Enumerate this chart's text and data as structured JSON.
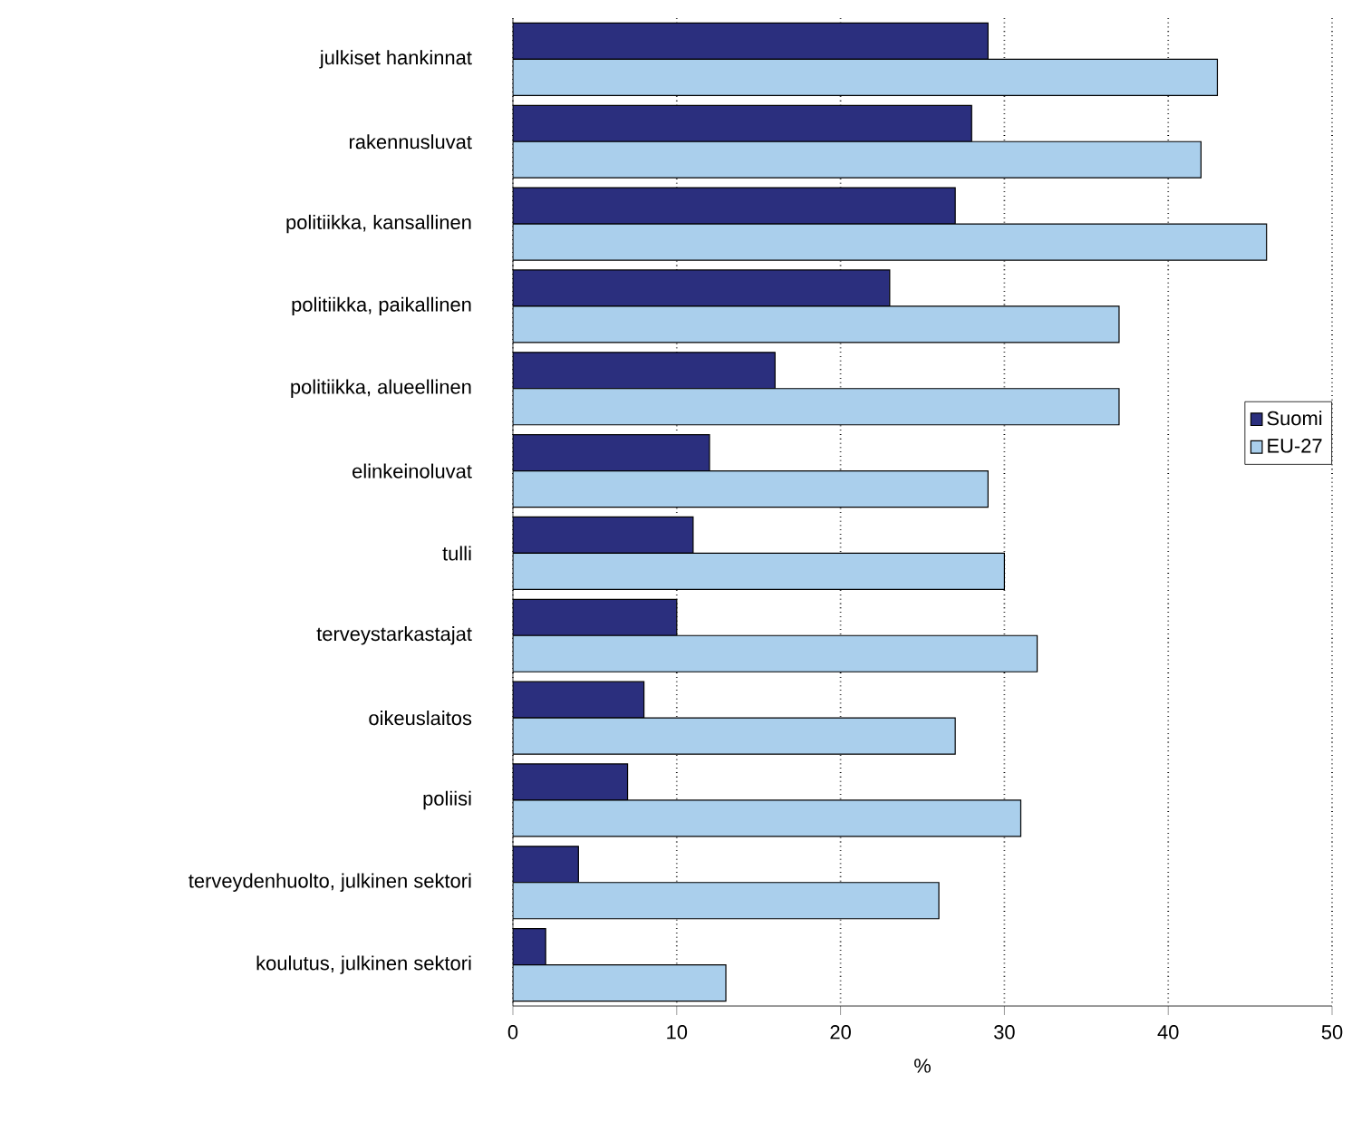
{
  "chart_data": {
    "type": "bar",
    "orientation": "horizontal",
    "xlabel": "%",
    "categories": [
      "julkiset hankinnat",
      "rakennusluvat",
      "politiikka, kansallinen",
      "politiikka, paikallinen",
      "politiikka, alueellinen",
      "elinkeinoluvat",
      "tulli",
      "terveystarkastajat",
      "oikeuslaitos",
      "poliisi",
      "terveydenhuolto, julkinen sektori",
      "koulutus, julkinen sektori"
    ],
    "series": [
      {
        "name": "Suomi",
        "color": "#2b2f7e",
        "values": [
          29,
          28,
          27,
          23,
          16,
          12,
          11,
          10,
          8,
          7,
          4,
          2
        ]
      },
      {
        "name": "EU-27",
        "color": "#aacfec",
        "values": [
          43,
          42,
          46,
          37,
          37,
          29,
          30,
          32,
          27,
          31,
          26,
          13
        ]
      }
    ],
    "xlim": [
      0,
      50
    ],
    "xticks": [
      0,
      10,
      20,
      30,
      40,
      50
    ],
    "grid": "x",
    "legend": "right"
  }
}
